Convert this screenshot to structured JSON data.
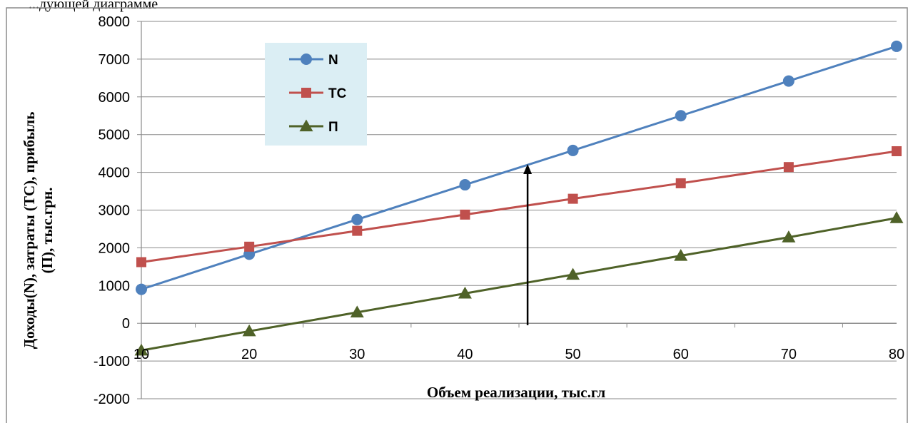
{
  "header_fragment": "...дующей диаграмме",
  "chart_data": {
    "type": "line",
    "x": [
      10,
      20,
      30,
      40,
      50,
      60,
      70,
      80
    ],
    "series": [
      {
        "name": "N",
        "values": [
          900,
          1830,
          2750,
          3670,
          4580,
          5500,
          6420,
          7340
        ],
        "color": "#4f81bd",
        "marker": "circle"
      },
      {
        "name": "TC",
        "values": [
          1620,
          2030,
          2450,
          2880,
          3300,
          3710,
          4140,
          4560
        ],
        "color": "#c0504d",
        "marker": "square"
      },
      {
        "name": "П",
        "values": [
          -720,
          -210,
          290,
          790,
          1290,
          1790,
          2280,
          2790
        ],
        "color": "#4f6228",
        "marker": "triangle"
      }
    ],
    "xlabel": "Объем реализации, тыс.гл",
    "ylabel_lines": [
      "Доходы(N), затраты (TC), прибыль",
      "(П), тыс.грн."
    ],
    "xlim": [
      10,
      80
    ],
    "ylim": [
      -2000,
      8000
    ],
    "y_ticks": [
      -2000,
      -1000,
      0,
      1000,
      2000,
      3000,
      4000,
      5000,
      6000,
      7000,
      8000
    ],
    "x_ticks": [
      10,
      20,
      30,
      40,
      50,
      60,
      70,
      80
    ],
    "grid": "horizontal",
    "legend_position": "top-left",
    "legend_background": "#dbeef4",
    "annotation": {
      "type": "arrow",
      "x": 45.8,
      "y_from": -50,
      "y_to": 4220,
      "color": "#000000"
    }
  }
}
